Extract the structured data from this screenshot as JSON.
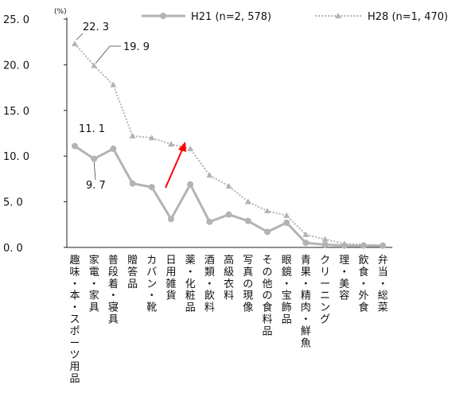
{
  "chart_data": {
    "type": "line",
    "y_unit": "(%)",
    "ylim": [
      0,
      25
    ],
    "y_ticks": [
      "25. 0",
      "20. 0",
      "15. 0",
      "10. 0",
      "5. 0",
      "0. 0"
    ],
    "y_tick_values": [
      25,
      20,
      15,
      10,
      5,
      0
    ],
    "grid": false,
    "legend_position": "top",
    "categories": [
      "趣味・本・スポーツ用品",
      "家電・家具",
      "普段着・寝具",
      "贈答品",
      "カバン・靴",
      "日用雑貨",
      "薬・化粧品",
      "酒類・飲料",
      "高級衣料",
      "写真の現像",
      "その他の食料品",
      "眼鏡・宝飾品",
      "青果・精肉・鮮魚",
      "クリーニング",
      "理・美容",
      "飲食・外食",
      "弁当・総菜"
    ],
    "series": [
      {
        "name": "H21 (n=2, 578)",
        "style": "solid",
        "color": "#b3b3b3",
        "values": [
          11.1,
          9.7,
          10.8,
          7.0,
          6.6,
          3.1,
          6.9,
          2.8,
          3.6,
          2.9,
          1.7,
          2.7,
          0.5,
          0.3,
          0.2,
          0.2,
          0.2
        ]
      },
      {
        "name": "H28 (n=1, 470)",
        "style": "dotted",
        "color": "#b3b3b3",
        "values": [
          22.3,
          19.9,
          17.8,
          12.2,
          12.0,
          11.3,
          10.8,
          7.9,
          6.7,
          5.0,
          4.0,
          3.5,
          1.4,
          0.9,
          0.4,
          0.3,
          0.2
        ]
      }
    ],
    "annotations": [
      {
        "text": "22. 3",
        "series": 1,
        "index": 0
      },
      {
        "text": "19. 9",
        "series": 1,
        "index": 1
      },
      {
        "text": "11. 1",
        "series": 0,
        "index": 0
      },
      {
        "text": "9. 7",
        "series": 0,
        "index": 1
      }
    ],
    "arrow_color": "#ff0000"
  }
}
